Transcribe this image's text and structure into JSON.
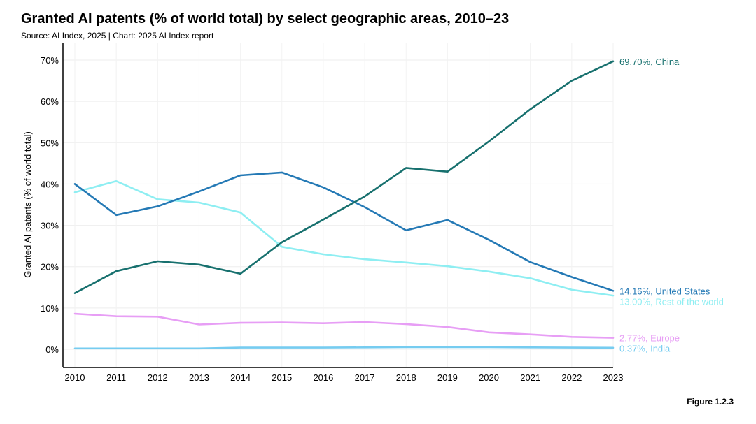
{
  "title": "Granted AI patents (% of world total) by select geographic areas, 2010–23",
  "subtitle": "Source: AI Index, 2025 | Chart: 2025 AI Index report",
  "figure_label": "Figure 1.2.3",
  "chart_data": {
    "type": "line",
    "title": "Granted AI patents (% of world total) by select geographic areas, 2010–23",
    "xlabel": "",
    "ylabel": "Granted AI patents (% of world total)",
    "ylim": [
      -4,
      74
    ],
    "yticks": [
      0,
      10,
      20,
      30,
      40,
      50,
      60,
      70
    ],
    "ytick_labels": [
      "0%",
      "10%",
      "20%",
      "30%",
      "40%",
      "50%",
      "60%",
      "70%"
    ],
    "grid": true,
    "x": [
      "2010",
      "2011",
      "2012",
      "2013",
      "2014",
      "2015",
      "2016",
      "2017",
      "2018",
      "2019",
      "2020",
      "2021",
      "2022",
      "2023"
    ],
    "series": [
      {
        "name": "China",
        "color": "#17706e",
        "end_label": "69.70%, China",
        "values": [
          13.6,
          18.9,
          21.3,
          20.5,
          18.3,
          25.9,
          31.4,
          37.0,
          43.9,
          43.0,
          50.3,
          58.1,
          65.0,
          69.7
        ]
      },
      {
        "name": "United States",
        "color": "#2479b5",
        "end_label": "14.16%, United States",
        "values": [
          40.0,
          32.5,
          34.6,
          38.2,
          42.1,
          42.8,
          39.2,
          34.4,
          28.8,
          31.3,
          26.5,
          21.1,
          17.5,
          14.16
        ]
      },
      {
        "name": "Rest of the world",
        "color": "#8eeef2",
        "end_label": "13.00%, Rest of the world",
        "values": [
          38.0,
          40.7,
          36.3,
          35.5,
          33.1,
          24.8,
          23.0,
          21.8,
          21.0,
          20.1,
          18.8,
          17.2,
          14.4,
          13.0
        ]
      },
      {
        "name": "Europe",
        "color": "#e79ef5",
        "end_label": "2.77%, Europe",
        "values": [
          8.6,
          8.0,
          7.9,
          6.0,
          6.4,
          6.5,
          6.3,
          6.6,
          6.1,
          5.4,
          4.1,
          3.6,
          3.0,
          2.77
        ]
      },
      {
        "name": "India",
        "color": "#76ccf0",
        "end_label": "0.37%, India",
        "values": [
          0.2,
          0.2,
          0.2,
          0.2,
          0.4,
          0.4,
          0.4,
          0.45,
          0.5,
          0.5,
          0.5,
          0.45,
          0.4,
          0.37
        ]
      }
    ]
  }
}
